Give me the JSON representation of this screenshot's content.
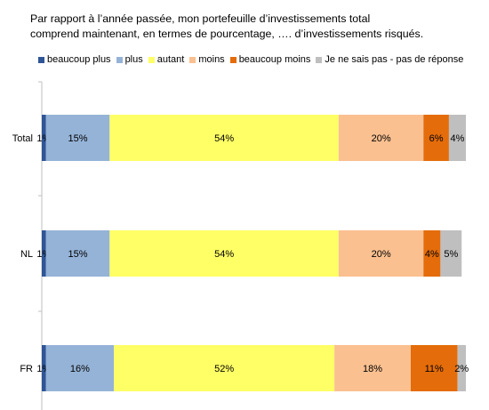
{
  "chart_data": {
    "type": "bar",
    "orientation": "horizontal",
    "stacked": true,
    "title_lines": [
      "Par rapport à l’année passée, mon portefeuille d’investissements total",
      "comprend maintenant, en termes de pourcentage, …. d’investissements risqués."
    ],
    "categories": [
      "Total",
      "NL",
      "FR"
    ],
    "series": [
      {
        "name": "beaucoup plus",
        "color": "#2f5597",
        "values": [
          1,
          1,
          1
        ]
      },
      {
        "name": "plus",
        "color": "#95b3d7",
        "values": [
          15,
          15,
          16
        ]
      },
      {
        "name": "autant",
        "color": "#ffff66",
        "values": [
          54,
          54,
          52
        ]
      },
      {
        "name": "moins",
        "color": "#fac090",
        "values": [
          20,
          20,
          18
        ]
      },
      {
        "name": "beaucoup moins",
        "color": "#e46c0a",
        "values": [
          6,
          4,
          11
        ]
      },
      {
        "name": "Je ne sais pas - pas de réponse",
        "color": "#bfbfbf",
        "values": [
          4,
          5,
          2
        ]
      }
    ],
    "labels": [
      [
        "1%",
        "15%",
        "54%",
        "20%",
        "6%",
        "4%"
      ],
      [
        "1%",
        "15%",
        "54%",
        "20%",
        "4%",
        "5%"
      ],
      [
        "1%",
        "16%",
        "52%",
        "18%",
        "11%",
        "2%"
      ]
    ],
    "xlim": [
      0,
      100
    ],
    "legend_position": "top",
    "grid": false
  }
}
